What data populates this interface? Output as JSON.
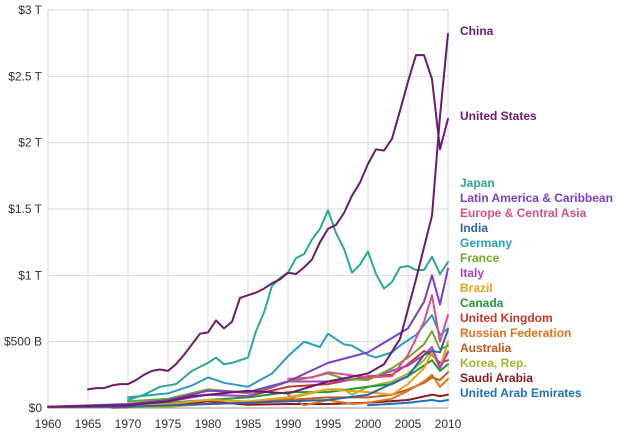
{
  "chart_data": {
    "type": "line",
    "title": "",
    "xlabel": "",
    "ylabel": "",
    "xlim": [
      1960,
      2010
    ],
    "ylim": [
      0,
      3
    ],
    "x_ticks": [
      "1960",
      "1965",
      "1970",
      "1975",
      "1980",
      "1985",
      "1990",
      "1995",
      "2000",
      "2005",
      "2010"
    ],
    "y_ticks": [
      "$0",
      "$500 B",
      "$1 T",
      "$1.5 T",
      "$2 T",
      "$2.5 T",
      "$3 T"
    ],
    "grid": "vertical and horizontal",
    "legend_placement": "right, labels at line ends",
    "units": "trillions of US dollars",
    "series": [
      {
        "name": "China",
        "color": "#6a1b6f",
        "x": [
          1960,
          1970,
          1975,
          1978,
          1980,
          1985,
          1990,
          1995,
          2000,
          2002,
          2004,
          2006,
          2008,
          2009,
          2010
        ],
        "values": [
          0.01,
          0.02,
          0.05,
          0.09,
          0.1,
          0.13,
          0.11,
          0.2,
          0.26,
          0.33,
          0.52,
          0.97,
          1.45,
          2.2,
          2.82
        ]
      },
      {
        "name": "United States",
        "color": "#6a1b6f",
        "x": [
          1965,
          1966,
          1967,
          1968,
          1969,
          1970,
          1971,
          1972,
          1973,
          1974,
          1975,
          1976,
          1977,
          1978,
          1979,
          1980,
          1981,
          1982,
          1983,
          1984,
          1985,
          1986,
          1987,
          1988,
          1989,
          1990,
          1991,
          1992,
          1993,
          1994,
          1995,
          1996,
          1997,
          1998,
          1999,
          2000,
          2001,
          2002,
          2003,
          2004,
          2005,
          2006,
          2007,
          2008,
          2009,
          2010
        ],
        "values": [
          0.14,
          0.15,
          0.15,
          0.17,
          0.18,
          0.18,
          0.21,
          0.25,
          0.28,
          0.29,
          0.28,
          0.33,
          0.4,
          0.48,
          0.56,
          0.57,
          0.66,
          0.6,
          0.65,
          0.83,
          0.85,
          0.87,
          0.9,
          0.94,
          0.97,
          1.02,
          1.01,
          1.06,
          1.12,
          1.25,
          1.35,
          1.38,
          1.47,
          1.6,
          1.7,
          1.84,
          1.95,
          1.94,
          2.03,
          2.24,
          2.46,
          2.66,
          2.66,
          2.48,
          1.95,
          2.18
        ]
      },
      {
        "name": "Japan",
        "color": "#2aa89a",
        "x": [
          1970,
          1972,
          1974,
          1976,
          1978,
          1980,
          1981,
          1982,
          1983,
          1984,
          1985,
          1986,
          1987,
          1988,
          1989,
          1990,
          1991,
          1992,
          1993,
          1994,
          1995,
          1996,
          1997,
          1998,
          1999,
          2000,
          2001,
          2002,
          2003,
          2004,
          2005,
          2006,
          2007,
          2008,
          2009,
          2010
        ],
        "values": [
          0.06,
          0.1,
          0.16,
          0.18,
          0.28,
          0.34,
          0.38,
          0.33,
          0.34,
          0.36,
          0.38,
          0.58,
          0.72,
          0.92,
          0.98,
          1.02,
          1.13,
          1.16,
          1.27,
          1.35,
          1.49,
          1.32,
          1.2,
          1.02,
          1.08,
          1.18,
          1.01,
          0.9,
          0.95,
          1.06,
          1.07,
          1.04,
          1.04,
          1.14,
          1.01,
          1.1
        ]
      },
      {
        "name": "Latin America & Caribbean",
        "color": "#7b3fc4",
        "x": [
          1960,
          1970,
          1975,
          1980,
          1985,
          1990,
          1995,
          2000,
          2005,
          2007,
          2008,
          2009,
          2010
        ],
        "values": [
          0.01,
          0.03,
          0.06,
          0.13,
          0.12,
          0.2,
          0.34,
          0.42,
          0.6,
          0.8,
          1.0,
          0.78,
          1.05
        ]
      },
      {
        "name": "Europe & Central Asia",
        "color": "#d8508c",
        "x": [
          1990,
          1993,
          1995,
          2000,
          2003,
          2005,
          2007,
          2008,
          2009,
          2010
        ],
        "values": [
          0.22,
          0.23,
          0.27,
          0.23,
          0.24,
          0.4,
          0.65,
          0.85,
          0.5,
          0.7
        ]
      },
      {
        "name": "India",
        "color": "#2f63a8",
        "x": [
          1960,
          1970,
          1980,
          1990,
          1995,
          2000,
          2005,
          2007,
          2008,
          2009,
          2010
        ],
        "values": [
          0.01,
          0.01,
          0.03,
          0.05,
          0.06,
          0.1,
          0.24,
          0.4,
          0.43,
          0.42,
          0.59
        ]
      },
      {
        "name": "Germany",
        "color": "#2a9ec2",
        "x": [
          1970,
          1975,
          1978,
          1980,
          1981,
          1982,
          1985,
          1988,
          1990,
          1992,
          1994,
          1995,
          1997,
          1998,
          2000,
          2001,
          2003,
          2004,
          2006,
          2008,
          2009,
          2010
        ],
        "values": [
          0.08,
          0.11,
          0.17,
          0.23,
          0.21,
          0.19,
          0.16,
          0.26,
          0.39,
          0.5,
          0.46,
          0.56,
          0.48,
          0.47,
          0.4,
          0.38,
          0.42,
          0.47,
          0.55,
          0.7,
          0.55,
          0.6
        ]
      },
      {
        "name": "France",
        "color": "#71a82a",
        "x": [
          1970,
          1975,
          1980,
          1982,
          1985,
          1990,
          1992,
          1995,
          1997,
          2000,
          2003,
          2005,
          2007,
          2008,
          2009,
          2010
        ],
        "values": [
          0.05,
          0.07,
          0.14,
          0.13,
          0.11,
          0.2,
          0.22,
          0.26,
          0.22,
          0.21,
          0.3,
          0.38,
          0.48,
          0.58,
          0.44,
          0.47
        ]
      },
      {
        "name": "Italy",
        "color": "#b33dc6",
        "x": [
          1970,
          1975,
          1980,
          1985,
          1990,
          1995,
          2000,
          2005,
          2007,
          2008,
          2009,
          2010
        ],
        "values": [
          0.03,
          0.05,
          0.1,
          0.09,
          0.2,
          0.2,
          0.22,
          0.32,
          0.4,
          0.46,
          0.3,
          0.42
        ]
      },
      {
        "name": "Brazil",
        "color": "#e8a21a",
        "x": [
          1970,
          1975,
          1980,
          1985,
          1990,
          1995,
          2000,
          2003,
          2005,
          2007,
          2008,
          2009,
          2010
        ],
        "values": [
          0.01,
          0.03,
          0.06,
          0.05,
          0.08,
          0.14,
          0.12,
          0.1,
          0.18,
          0.3,
          0.42,
          0.3,
          0.5
        ]
      },
      {
        "name": "Canada",
        "color": "#1f9a3a",
        "x": [
          1970,
          1975,
          1980,
          1985,
          1990,
          1995,
          2000,
          2003,
          2005,
          2007,
          2008,
          2009,
          2010
        ],
        "values": [
          0.02,
          0.04,
          0.06,
          0.08,
          0.12,
          0.12,
          0.16,
          0.18,
          0.24,
          0.32,
          0.36,
          0.28,
          0.33
        ]
      },
      {
        "name": "United Kingdom",
        "color": "#c0392b",
        "x": [
          1970,
          1975,
          1980,
          1985,
          1990,
          1995,
          2000,
          2003,
          2005,
          2006,
          2007,
          2008,
          2009,
          2010
        ],
        "values": [
          0.03,
          0.05,
          0.1,
          0.09,
          0.16,
          0.18,
          0.24,
          0.25,
          0.33,
          0.38,
          0.43,
          0.4,
          0.34,
          0.36
        ]
      },
      {
        "name": "Russian Federation",
        "color": "#e2731c",
        "x": [
          1990,
          1992,
          1995,
          1998,
          2000,
          2003,
          2005,
          2007,
          2008,
          2009,
          2010
        ],
        "values": [
          0.1,
          0.02,
          0.06,
          0.03,
          0.04,
          0.07,
          0.13,
          0.2,
          0.25,
          0.16,
          0.22
        ]
      },
      {
        "name": "Australia",
        "color": "#c05a25",
        "x": [
          1960,
          1970,
          1975,
          1980,
          1985,
          1990,
          1995,
          2000,
          2003,
          2005,
          2007,
          2008,
          2009,
          2010
        ],
        "values": [
          0.005,
          0.01,
          0.02,
          0.03,
          0.04,
          0.06,
          0.08,
          0.08,
          0.1,
          0.14,
          0.19,
          0.23,
          0.21,
          0.27
        ]
      },
      {
        "name": "Korea, Rep.",
        "color": "#a6b630",
        "x": [
          1970,
          1975,
          1980,
          1985,
          1990,
          1995,
          1997,
          1998,
          2000,
          2003,
          2005,
          2007,
          2008,
          2009,
          2010
        ],
        "values": [
          0.005,
          0.01,
          0.03,
          0.04,
          0.07,
          0.14,
          0.14,
          0.1,
          0.16,
          0.2,
          0.26,
          0.36,
          0.44,
          0.32,
          0.43
        ]
      },
      {
        "name": "Saudi Arabia",
        "color": "#8b1a1a",
        "x": [
          1968,
          1970,
          1975,
          1980,
          1982,
          1985,
          1990,
          1995,
          2000,
          2005,
          2008,
          2009,
          2010
        ],
        "values": [
          0.003,
          0.005,
          0.02,
          0.05,
          0.04,
          0.025,
          0.03,
          0.03,
          0.04,
          0.06,
          0.1,
          0.09,
          0.1
        ]
      },
      {
        "name": "United Arab Emirates",
        "color": "#1f6fc4",
        "x": [
          2000,
          2005,
          2008,
          2009,
          2010
        ],
        "values": [
          0.02,
          0.04,
          0.06,
          0.05,
          0.06
        ]
      }
    ]
  }
}
